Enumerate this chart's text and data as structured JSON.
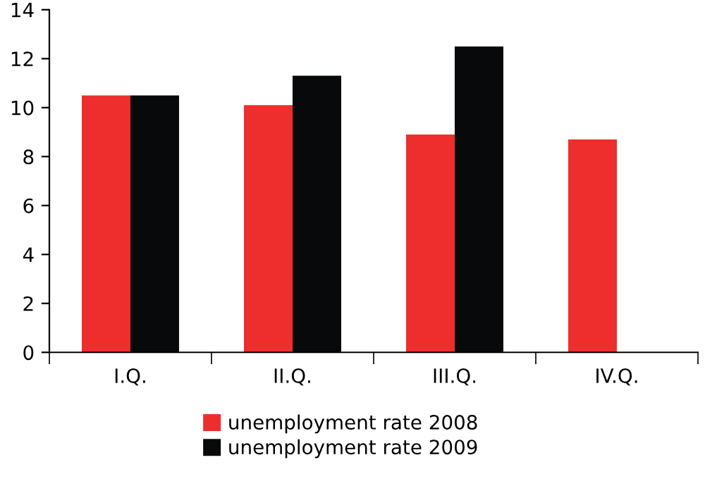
{
  "chart_data": {
    "type": "bar",
    "categories": [
      "I.Q.",
      "II.Q.",
      "III.Q.",
      "IV.Q."
    ],
    "series": [
      {
        "name": "unemployment rate 2008",
        "color": "#ee2e2c",
        "values": [
          10.5,
          10.1,
          8.9,
          8.7
        ]
      },
      {
        "name": "unemployment rate 2009",
        "color": "#08090b",
        "values": [
          10.5,
          11.3,
          12.5,
          null
        ]
      }
    ],
    "ylim": [
      0,
      14
    ],
    "yticks": [
      0,
      2,
      4,
      6,
      8,
      10,
      12,
      14
    ],
    "grid": false,
    "legend": "bottom"
  }
}
